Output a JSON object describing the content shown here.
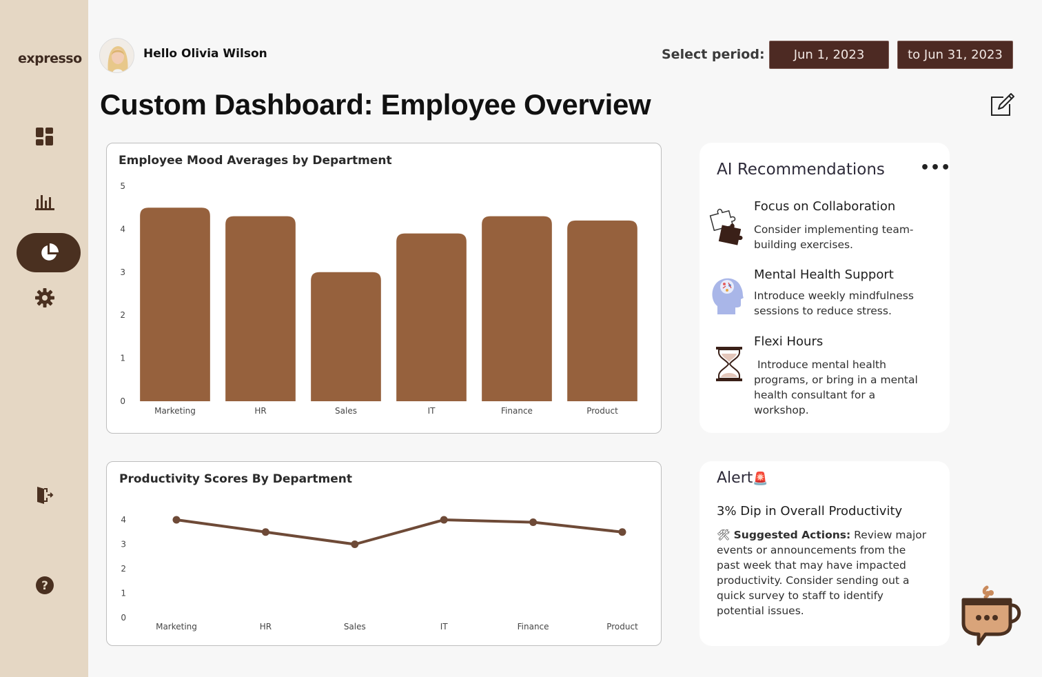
{
  "app": {
    "logo": "expresso"
  },
  "sidebar": {
    "items": [
      {
        "name": "dashboard-icon"
      },
      {
        "name": "bar-chart-icon"
      },
      {
        "name": "pie-chart-icon",
        "active": true
      },
      {
        "name": "gear-icon"
      },
      {
        "name": "logout-icon"
      },
      {
        "name": "help-icon"
      }
    ]
  },
  "header": {
    "greeting": "Hello Olivia Wilson",
    "period_label": "Select period:",
    "start_date": "Jun 1, 2023",
    "end_date": "to Jun 31, 2023"
  },
  "page": {
    "title": "Custom Dashboard: Employee Overview"
  },
  "chart_data": [
    {
      "type": "bar",
      "title": "Employee Mood Averages by Department",
      "categories": [
        "Marketing",
        "HR",
        "Sales",
        "IT",
        "Finance",
        "Product"
      ],
      "values": [
        4.5,
        4.3,
        3.0,
        3.9,
        4.3,
        4.2
      ],
      "ylim": [
        0,
        5
      ],
      "yticks": [
        0,
        1,
        2,
        3,
        4,
        5
      ],
      "color": "#96613d",
      "xlabel": "",
      "ylabel": ""
    },
    {
      "type": "line",
      "title": "Productivity Scores By Department",
      "categories": [
        "Marketing",
        "HR",
        "Sales",
        "IT",
        "Finance",
        "Product"
      ],
      "values": [
        4.0,
        3.5,
        3.0,
        4.0,
        3.9,
        3.5
      ],
      "ylim": [
        0,
        4
      ],
      "yticks": [
        0,
        1,
        2,
        3,
        4
      ],
      "color": "#6e4a37",
      "xlabel": "",
      "ylabel": ""
    }
  ],
  "recommendations": {
    "title": "AI Recommendations",
    "menu_icon": "more-icon",
    "items": [
      {
        "icon": "puzzle-icon",
        "heading": "Focus on  Collaboration",
        "body": "Consider implementing team-building exercises."
      },
      {
        "icon": "brain-head-icon",
        "heading": "Mental Health Support",
        "body": "Introduce weekly mindfulness sessions to reduce stress."
      },
      {
        "icon": "hourglass-icon",
        "heading": "Flexi Hours",
        "body": " Introduce mental health programs, or bring in a mental health consultant for a workshop."
      }
    ]
  },
  "alert": {
    "title": "Alert",
    "title_emoji": "🚨",
    "heading": "3% Dip in Overall Productivity",
    "actions_emoji": "🛠",
    "actions_label": "Suggested Actions:",
    "actions_text": " Review major events or announcements from the past week that may have impacted productivity. Consider sending out a quick survey to staff to identify potential issues."
  },
  "colors": {
    "sidebar_bg": "#e5d7c4",
    "accent_dark": "#4a3020",
    "bar_color": "#96613d",
    "line_color": "#6e4a37",
    "date_button": "#4d2a23"
  }
}
